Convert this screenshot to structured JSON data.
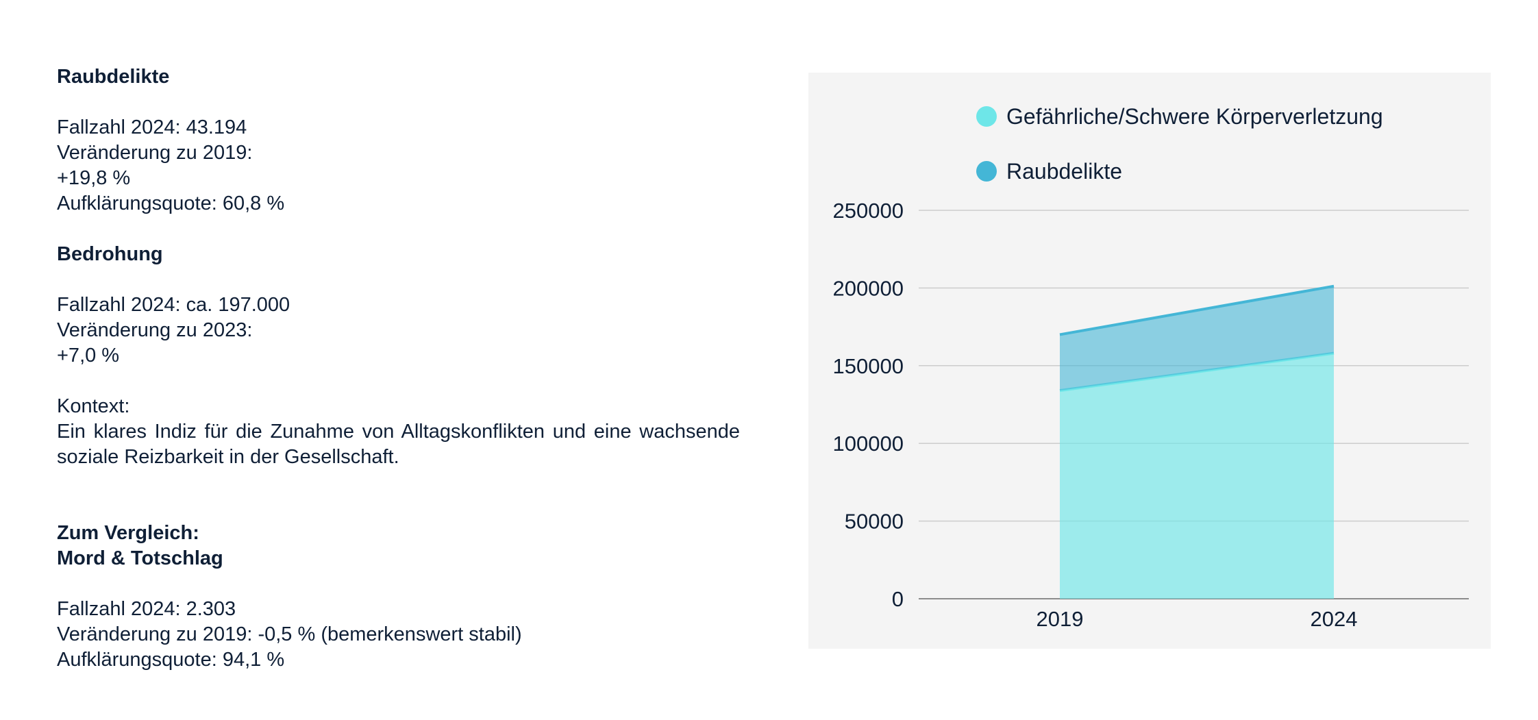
{
  "text_panel": {
    "robbery": {
      "heading": "Raubdelikte",
      "lines": [
        "Fallzahl 2024: 43.194",
        "Veränderung zu 2019:",
        "+19,8 %",
        "Aufklärungsquote: 60,8 %"
      ]
    },
    "threat": {
      "heading": "Bedrohung",
      "lines": [
        "Fallzahl 2024: ca. 197.000",
        "Veränderung zu 2023:",
        "+7,0 %"
      ]
    },
    "context": {
      "label": "Kontext:",
      "text": "Ein klares Indiz für die Zunahme von Alltagskonflikten und eine wachsende soziale Reizbarkeit in der Gesellschaft."
    },
    "comparison": {
      "heading1": "Zum Vergleich:",
      "heading2": "Mord & Totschlag",
      "lines": [
        "Fallzahl 2024: 2.303",
        "Veränderung zu 2019: -0,5 % (bemerkenswert stabil)",
        "Aufklärungsquote: 94,1 %"
      ]
    }
  },
  "chart_data": {
    "type": "area",
    "stacked": true,
    "categories": [
      "2019",
      "2024"
    ],
    "series": [
      {
        "name": "Gefährliche/Schwere Körperverletzung",
        "values": [
          134000,
          158000
        ],
        "color": "#6ee6e8"
      },
      {
        "name": "Raubdelikte",
        "values": [
          36000,
          43194
        ],
        "color": "#44b6d6"
      }
    ],
    "ylim": [
      0,
      250000
    ],
    "yticks": [
      0,
      50000,
      100000,
      150000,
      200000,
      250000
    ],
    "legend_position": "top",
    "grid": true,
    "background": "#f4f4f4"
  }
}
